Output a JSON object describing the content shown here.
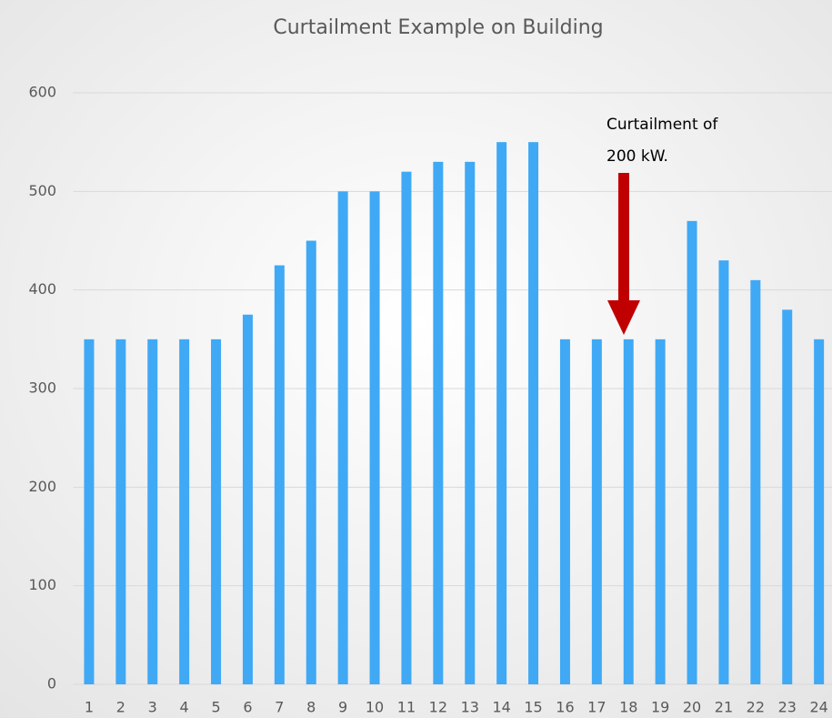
{
  "chart_data": {
    "type": "bar",
    "title": "Curtailment Example on Building",
    "categories": [
      "1",
      "2",
      "3",
      "4",
      "5",
      "6",
      "7",
      "8",
      "9",
      "10",
      "11",
      "12",
      "13",
      "14",
      "15",
      "16",
      "17",
      "18",
      "19",
      "20",
      "21",
      "22",
      "23",
      "24"
    ],
    "values": [
      350,
      350,
      350,
      350,
      350,
      375,
      425,
      450,
      500,
      500,
      520,
      530,
      530,
      550,
      550,
      350,
      350,
      350,
      350,
      470,
      430,
      410,
      380,
      350
    ],
    "color": "#3fa9f5",
    "ylim": [
      0,
      600
    ],
    "yticks": [
      0,
      100,
      200,
      300,
      400,
      500,
      600
    ],
    "grid": true,
    "annotation_lines": [
      "Curtailment of",
      "200 kW."
    ]
  }
}
